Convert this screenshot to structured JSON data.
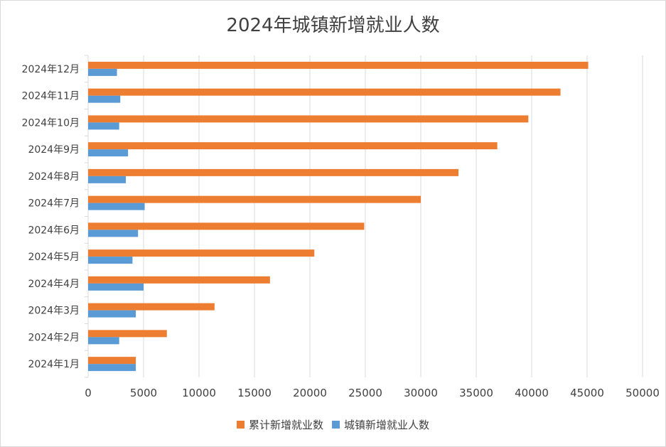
{
  "colors": {
    "cumulative": "#ED7D31",
    "monthly": "#5B9BD5",
    "grid": "#d9d9d9",
    "text": "#404040"
  },
  "chart_data": {
    "type": "bar",
    "orientation": "horizontal",
    "title": "2024年城镇新增就业人数",
    "categories": [
      "2024年1月",
      "2024年2月",
      "2024年3月",
      "2024年4月",
      "2024年5月",
      "2024年6月",
      "2024年7月",
      "2024年8月",
      "2024年9月",
      "2024年10月",
      "2024年11月",
      "2024年12月"
    ],
    "series": [
      {
        "name": "累计新增就业数",
        "values": [
          4300,
          7100,
          11400,
          16400,
          20400,
          24900,
          30000,
          33400,
          36900,
          39700,
          42600,
          45100
        ]
      },
      {
        "name": "城镇新增就业人数",
        "values": [
          4300,
          2800,
          4300,
          5000,
          4000,
          4500,
          5100,
          3400,
          3600,
          2800,
          2900,
          2600
        ]
      }
    ],
    "xlim": [
      0,
      50000
    ],
    "xticks": [
      "0",
      "5000",
      "10000",
      "15000",
      "20000",
      "25000",
      "30000",
      "35000",
      "40000",
      "45000",
      "50000"
    ],
    "grid": true,
    "legend_position": "bottom"
  }
}
